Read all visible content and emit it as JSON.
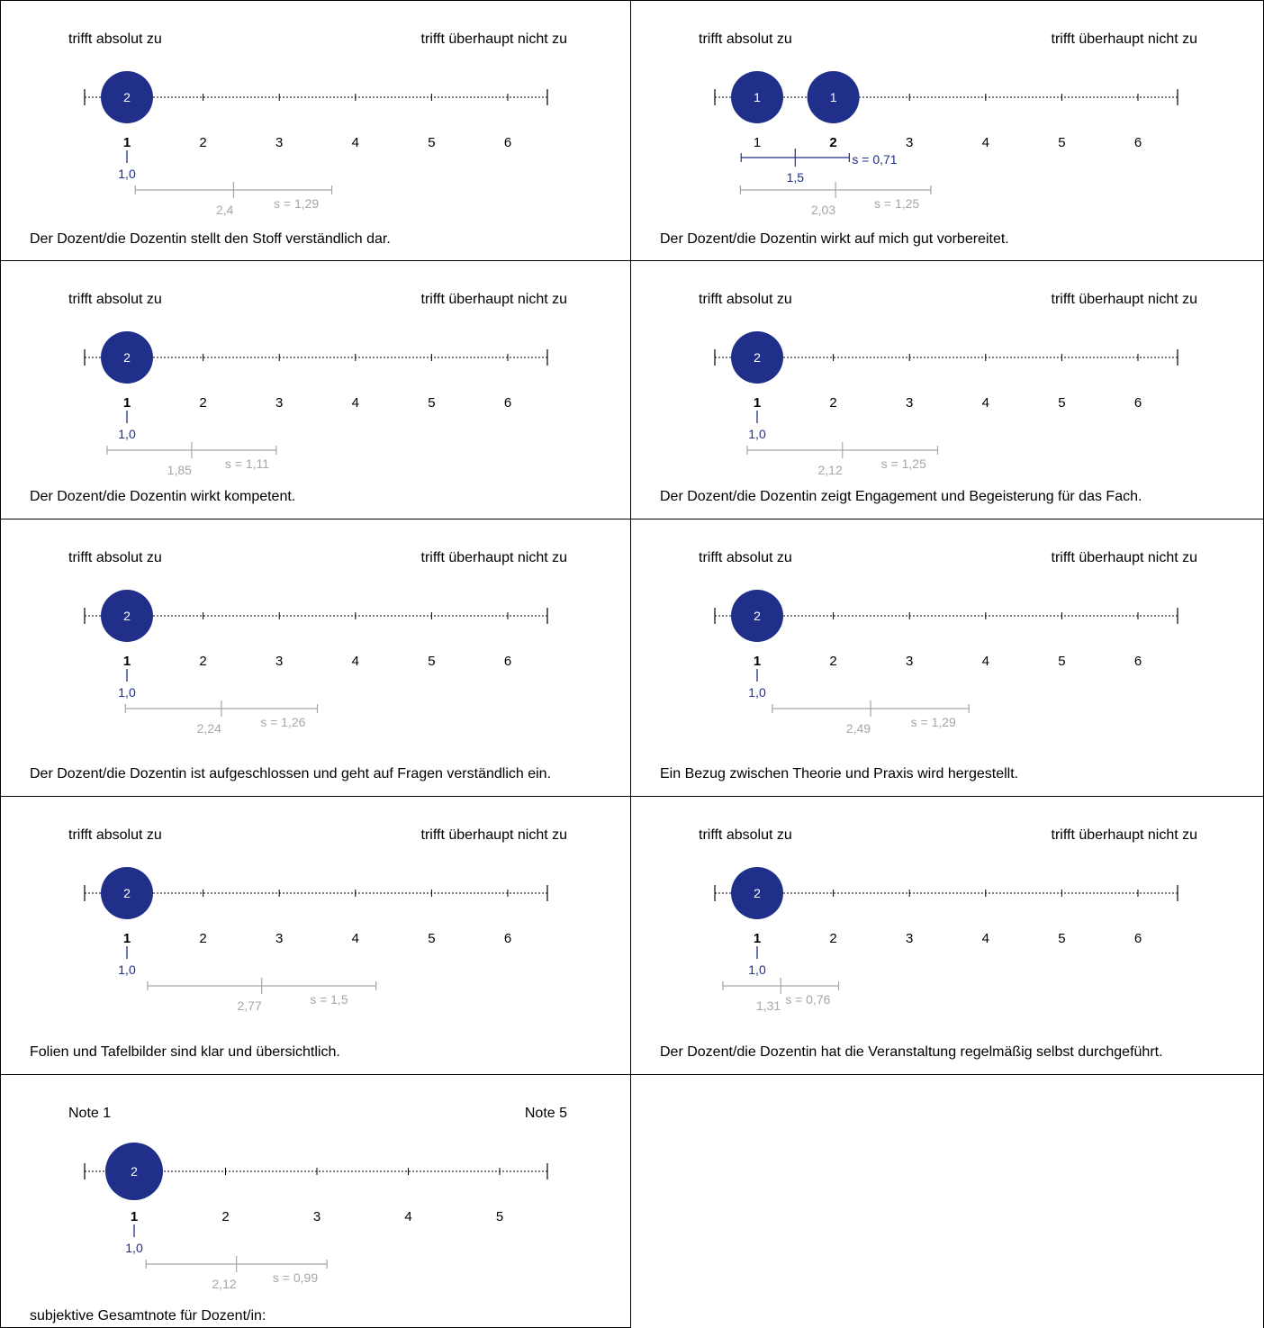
{
  "chart_data": [
    {
      "type": "scatter",
      "question": "Der Dozent/die Dozentin stellt den Stoff verständlich dar.",
      "left_label": "trifft absolut zu",
      "right_label": "trifft überhaupt nicht zu",
      "ticks": [
        "1",
        "2",
        "3",
        "4",
        "5",
        "6"
      ],
      "selected_tick": "1",
      "bubbles": [
        {
          "x": 1,
          "count": "2"
        }
      ],
      "own": {
        "mean": 1.0,
        "mean_label": "1,0",
        "sd": 0,
        "sd_label": ""
      },
      "comparison": {
        "mean": 2.4,
        "mean_label": "2,4",
        "sd": 1.29,
        "sd_label": "s = 1,29"
      }
    },
    {
      "type": "scatter",
      "question": "Der Dozent/die Dozentin wirkt auf mich gut vorbereitet.",
      "left_label": "trifft absolut zu",
      "right_label": "trifft überhaupt nicht zu",
      "ticks": [
        "1",
        "2",
        "3",
        "4",
        "5",
        "6"
      ],
      "selected_tick": "2",
      "bubbles": [
        {
          "x": 1,
          "count": "1"
        },
        {
          "x": 2,
          "count": "1"
        }
      ],
      "own": {
        "mean": 1.5,
        "mean_label": "1,5",
        "sd": 0.71,
        "sd_label": "s = 0,71"
      },
      "comparison": {
        "mean": 2.03,
        "mean_label": "2,03",
        "sd": 1.25,
        "sd_label": "s = 1,25"
      }
    },
    {
      "type": "scatter",
      "question": "Der Dozent/die Dozentin wirkt kompetent.",
      "left_label": "trifft absolut zu",
      "right_label": "trifft überhaupt nicht zu",
      "ticks": [
        "1",
        "2",
        "3",
        "4",
        "5",
        "6"
      ],
      "selected_tick": "1",
      "bubbles": [
        {
          "x": 1,
          "count": "2"
        }
      ],
      "own": {
        "mean": 1.0,
        "mean_label": "1,0",
        "sd": 0,
        "sd_label": ""
      },
      "comparison": {
        "mean": 1.85,
        "mean_label": "1,85",
        "sd": 1.11,
        "sd_label": "s = 1,11"
      }
    },
    {
      "type": "scatter",
      "question": "Der Dozent/die Dozentin zeigt Engagement und Begeisterung für das Fach.",
      "left_label": "trifft absolut zu",
      "right_label": "trifft überhaupt nicht zu",
      "ticks": [
        "1",
        "2",
        "3",
        "4",
        "5",
        "6"
      ],
      "selected_tick": "1",
      "bubbles": [
        {
          "x": 1,
          "count": "2"
        }
      ],
      "own": {
        "mean": 1.0,
        "mean_label": "1,0",
        "sd": 0,
        "sd_label": ""
      },
      "comparison": {
        "mean": 2.12,
        "mean_label": "2,12",
        "sd": 1.25,
        "sd_label": "s = 1,25"
      }
    },
    {
      "type": "scatter",
      "question": "Der Dozent/die Dozentin ist aufgeschlossen und geht auf Fragen verständlich ein.",
      "left_label": "trifft absolut zu",
      "right_label": "trifft überhaupt nicht zu",
      "ticks": [
        "1",
        "2",
        "3",
        "4",
        "5",
        "6"
      ],
      "selected_tick": "1",
      "bubbles": [
        {
          "x": 1,
          "count": "2"
        }
      ],
      "own": {
        "mean": 1.0,
        "mean_label": "1,0",
        "sd": 0,
        "sd_label": ""
      },
      "comparison": {
        "mean": 2.24,
        "mean_label": "2,24",
        "sd": 1.26,
        "sd_label": "s = 1,26"
      }
    },
    {
      "type": "scatter",
      "question": "Ein Bezug zwischen Theorie und Praxis wird hergestellt.",
      "left_label": "trifft absolut zu",
      "right_label": "trifft überhaupt nicht zu",
      "ticks": [
        "1",
        "2",
        "3",
        "4",
        "5",
        "6"
      ],
      "selected_tick": "1",
      "bubbles": [
        {
          "x": 1,
          "count": "2"
        }
      ],
      "own": {
        "mean": 1.0,
        "mean_label": "1,0",
        "sd": 0,
        "sd_label": ""
      },
      "comparison": {
        "mean": 2.49,
        "mean_label": "2,49",
        "sd": 1.29,
        "sd_label": "s = 1,29"
      }
    },
    {
      "type": "scatter",
      "question": "Folien und Tafelbilder sind klar und übersichtlich.",
      "left_label": "trifft absolut zu",
      "right_label": "trifft überhaupt nicht zu",
      "ticks": [
        "1",
        "2",
        "3",
        "4",
        "5",
        "6"
      ],
      "selected_tick": "1",
      "bubbles": [
        {
          "x": 1,
          "count": "2"
        }
      ],
      "own": {
        "mean": 1.0,
        "mean_label": "1,0",
        "sd": 0,
        "sd_label": ""
      },
      "comparison": {
        "mean": 2.77,
        "mean_label": "2,77",
        "sd": 1.5,
        "sd_label": "s = 1,5"
      }
    },
    {
      "type": "scatter",
      "question": "Der Dozent/die Dozentin hat die Veranstaltung regelmäßig selbst durchgeführt.",
      "left_label": "trifft absolut zu",
      "right_label": "trifft überhaupt nicht zu",
      "ticks": [
        "1",
        "2",
        "3",
        "4",
        "5",
        "6"
      ],
      "selected_tick": "1",
      "bubbles": [
        {
          "x": 1,
          "count": "2"
        }
      ],
      "own": {
        "mean": 1.0,
        "mean_label": "1,0",
        "sd": 0,
        "sd_label": ""
      },
      "comparison": {
        "mean": 1.31,
        "mean_label": "1,31",
        "sd": 0.76,
        "sd_label": "s = 0,76"
      }
    },
    {
      "type": "scatter",
      "question": "subjektive Gesamtnote für Dozent/in:",
      "left_label": "Note 1",
      "right_label": "Note 5",
      "ticks": [
        "1",
        "2",
        "3",
        "4",
        "5"
      ],
      "selected_tick": "1",
      "bubbles": [
        {
          "x": 1,
          "count": "2"
        }
      ],
      "own": {
        "mean": 1.0,
        "mean_label": "1,0",
        "sd": 0,
        "sd_label": ""
      },
      "comparison": {
        "mean": 2.12,
        "mean_label": "2,12",
        "sd": 0.99,
        "sd_label": "s = 0,99"
      }
    }
  ],
  "colors": {
    "bubble": "#1f2f8a",
    "own_stats": "#1f2f8a",
    "comparison_stats": "#a6a6a6",
    "axis": "#000000",
    "border": "#000000"
  }
}
